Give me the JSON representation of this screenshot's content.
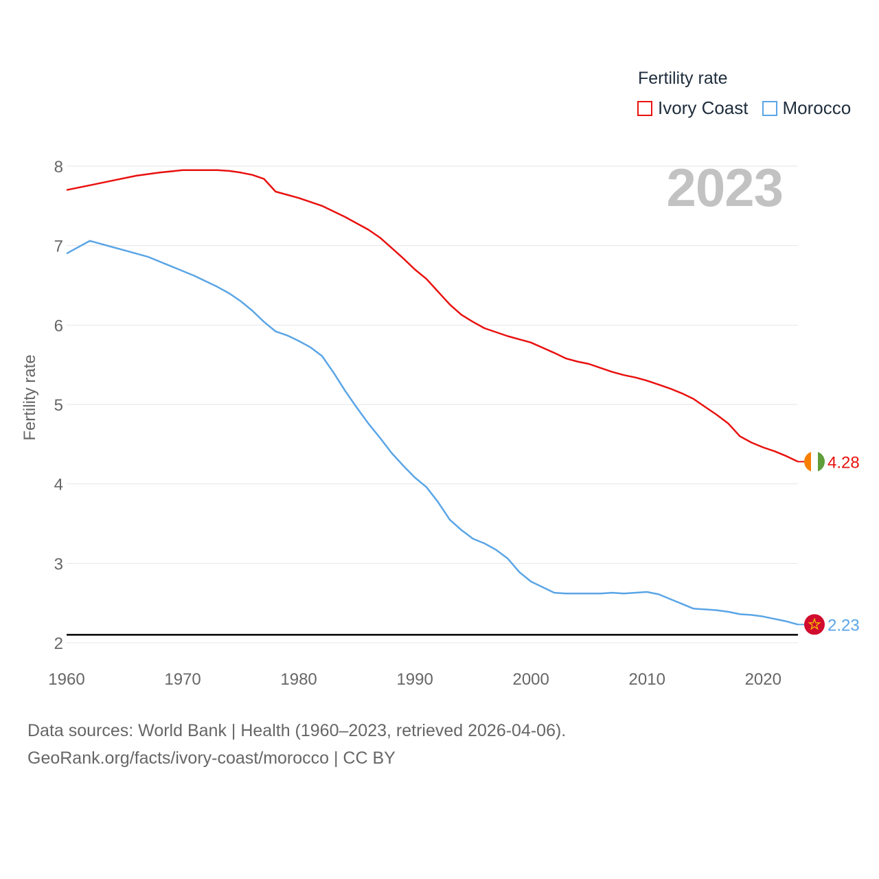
{
  "legend": {
    "title": "Fertility rate",
    "items": [
      {
        "label": "Ivory Coast",
        "color": "#e8110f"
      },
      {
        "label": "Morocco",
        "color": "#5aa5e6"
      }
    ]
  },
  "current_year": "2023",
  "footer": {
    "line1": "Data sources: World Bank | Health (1960–2023, retrieved 2026-04-06).",
    "line2": "GeoRank.org/facts/ivory-coast/morocco | CC BY"
  },
  "chart_data": {
    "type": "line",
    "title": "Fertility rate",
    "xlabel": "",
    "ylabel": "Fertility rate",
    "xlim": [
      1960,
      2023
    ],
    "ylim": [
      2,
      8.1
    ],
    "xticks": [
      1960,
      1970,
      1980,
      1990,
      2000,
      2010,
      2020
    ],
    "yticks": [
      2,
      3,
      4,
      5,
      6,
      7,
      8
    ],
    "reference_line": {
      "y": 2.1,
      "color": "#000000"
    },
    "series": [
      {
        "name": "Ivory Coast",
        "color": "#e8110f",
        "end_label": "4.28",
        "flag": "ivory-coast-flag",
        "x": [
          1960,
          1962,
          1964,
          1966,
          1968,
          1970,
          1972,
          1973,
          1974,
          1975,
          1976,
          1977,
          1978,
          1980,
          1982,
          1984,
          1986,
          1987,
          1988,
          1989,
          1990,
          1991,
          1992,
          1993,
          1994,
          1995,
          1996,
          1998,
          2000,
          2002,
          2003,
          2004,
          2005,
          2006,
          2007,
          2008,
          2009,
          2010,
          2011,
          2012,
          2013,
          2014,
          2015,
          2016,
          2017,
          2018,
          2019,
          2020,
          2021,
          2022,
          2023
        ],
        "values": [
          7.7,
          7.76,
          7.82,
          7.88,
          7.92,
          7.95,
          7.95,
          7.95,
          7.94,
          7.92,
          7.89,
          7.84,
          7.68,
          7.6,
          7.5,
          7.36,
          7.2,
          7.1,
          6.97,
          6.84,
          6.7,
          6.58,
          6.42,
          6.26,
          6.13,
          6.04,
          5.96,
          5.86,
          5.78,
          5.65,
          5.58,
          5.54,
          5.51,
          5.46,
          5.41,
          5.37,
          5.34,
          5.3,
          5.25,
          5.2,
          5.14,
          5.07,
          4.97,
          4.87,
          4.76,
          4.6,
          4.52,
          4.46,
          4.41,
          4.35,
          4.28
        ]
      },
      {
        "name": "Morocco",
        "color": "#5aa5e6",
        "end_label": "2.23",
        "flag": "morocco-flag",
        "x": [
          1960,
          1962,
          1964,
          1965,
          1967,
          1969,
          1971,
          1973,
          1974,
          1975,
          1976,
          1977,
          1978,
          1979,
          1980,
          1981,
          1982,
          1983,
          1984,
          1985,
          1986,
          1987,
          1988,
          1989,
          1990,
          1991,
          1992,
          1993,
          1994,
          1995,
          1996,
          1997,
          1998,
          1999,
          2000,
          2001,
          2002,
          2003,
          2004,
          2005,
          2006,
          2007,
          2008,
          2009,
          2010,
          2011,
          2012,
          2013,
          2014,
          2015,
          2016,
          2017,
          2018,
          2019,
          2020,
          2021,
          2022,
          2023
        ],
        "values": [
          6.9,
          7.06,
          6.98,
          6.94,
          6.86,
          6.74,
          6.62,
          6.48,
          6.4,
          6.3,
          6.18,
          6.04,
          5.92,
          5.87,
          5.8,
          5.72,
          5.61,
          5.4,
          5.17,
          4.96,
          4.76,
          4.58,
          4.39,
          4.23,
          4.08,
          3.96,
          3.77,
          3.55,
          3.42,
          3.31,
          3.25,
          3.17,
          3.06,
          2.89,
          2.77,
          2.7,
          2.63,
          2.62,
          2.62,
          2.62,
          2.62,
          2.63,
          2.62,
          2.63,
          2.64,
          2.61,
          2.55,
          2.49,
          2.43,
          2.42,
          2.41,
          2.39,
          2.36,
          2.35,
          2.33,
          2.3,
          2.27,
          2.23
        ]
      }
    ]
  }
}
